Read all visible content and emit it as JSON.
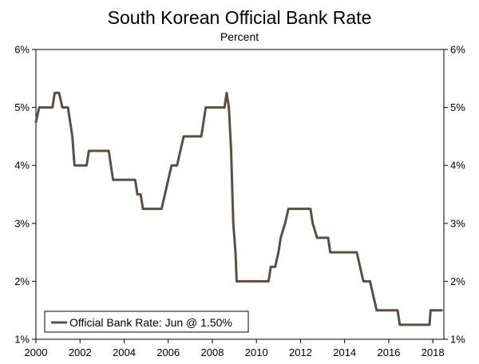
{
  "chart_data": {
    "type": "line",
    "title": "South Korean Official Bank Rate",
    "subtitle": "Percent",
    "xlabel": "",
    "ylabel": "",
    "xlim": [
      2000,
      2018.5
    ],
    "ylim": [
      1,
      6
    ],
    "x_ticks": [
      2000,
      2002,
      2004,
      2006,
      2008,
      2010,
      2012,
      2014,
      2016,
      2018
    ],
    "x_tick_labels": [
      "2000",
      "2002",
      "2004",
      "2006",
      "2008",
      "2010",
      "2012",
      "2014",
      "2016",
      "2018"
    ],
    "y_ticks": [
      1,
      2,
      3,
      4,
      5,
      6
    ],
    "y_tick_labels": [
      "1%",
      "2%",
      "3%",
      "4%",
      "5%",
      "6%"
    ],
    "legend_position": "bottom-left",
    "series": [
      {
        "name": "Official Bank Rate: Jun @ 1.50%",
        "color": "#5a4f47",
        "points": [
          [
            2000.0,
            4.75
          ],
          [
            2000.15,
            5.0
          ],
          [
            2000.75,
            5.0
          ],
          [
            2000.85,
            5.25
          ],
          [
            2001.05,
            5.25
          ],
          [
            2001.2,
            5.0
          ],
          [
            2001.45,
            5.0
          ],
          [
            2001.65,
            4.5
          ],
          [
            2001.75,
            4.0
          ],
          [
            2002.3,
            4.0
          ],
          [
            2002.4,
            4.25
          ],
          [
            2003.3,
            4.25
          ],
          [
            2003.4,
            4.0
          ],
          [
            2003.5,
            3.75
          ],
          [
            2004.5,
            3.75
          ],
          [
            2004.6,
            3.5
          ],
          [
            2004.75,
            3.5
          ],
          [
            2004.85,
            3.25
          ],
          [
            2005.7,
            3.25
          ],
          [
            2005.85,
            3.5
          ],
          [
            2006.0,
            3.75
          ],
          [
            2006.15,
            4.0
          ],
          [
            2006.4,
            4.0
          ],
          [
            2006.55,
            4.25
          ],
          [
            2006.7,
            4.5
          ],
          [
            2007.5,
            4.5
          ],
          [
            2007.6,
            4.75
          ],
          [
            2007.7,
            5.0
          ],
          [
            2008.55,
            5.0
          ],
          [
            2008.65,
            5.25
          ],
          [
            2008.75,
            5.0
          ],
          [
            2008.85,
            4.25
          ],
          [
            2008.95,
            3.0
          ],
          [
            2009.05,
            2.5
          ],
          [
            2009.1,
            2.0
          ],
          [
            2010.55,
            2.0
          ],
          [
            2010.65,
            2.25
          ],
          [
            2010.85,
            2.25
          ],
          [
            2011.0,
            2.5
          ],
          [
            2011.1,
            2.75
          ],
          [
            2011.3,
            3.0
          ],
          [
            2011.45,
            3.25
          ],
          [
            2012.45,
            3.25
          ],
          [
            2012.55,
            3.0
          ],
          [
            2012.75,
            2.75
          ],
          [
            2013.25,
            2.75
          ],
          [
            2013.35,
            2.5
          ],
          [
            2014.55,
            2.5
          ],
          [
            2014.7,
            2.25
          ],
          [
            2014.85,
            2.0
          ],
          [
            2015.15,
            2.0
          ],
          [
            2015.3,
            1.75
          ],
          [
            2015.45,
            1.5
          ],
          [
            2016.4,
            1.5
          ],
          [
            2016.5,
            1.25
          ],
          [
            2017.85,
            1.25
          ],
          [
            2017.9,
            1.5
          ],
          [
            2018.4,
            1.5
          ]
        ]
      }
    ]
  }
}
